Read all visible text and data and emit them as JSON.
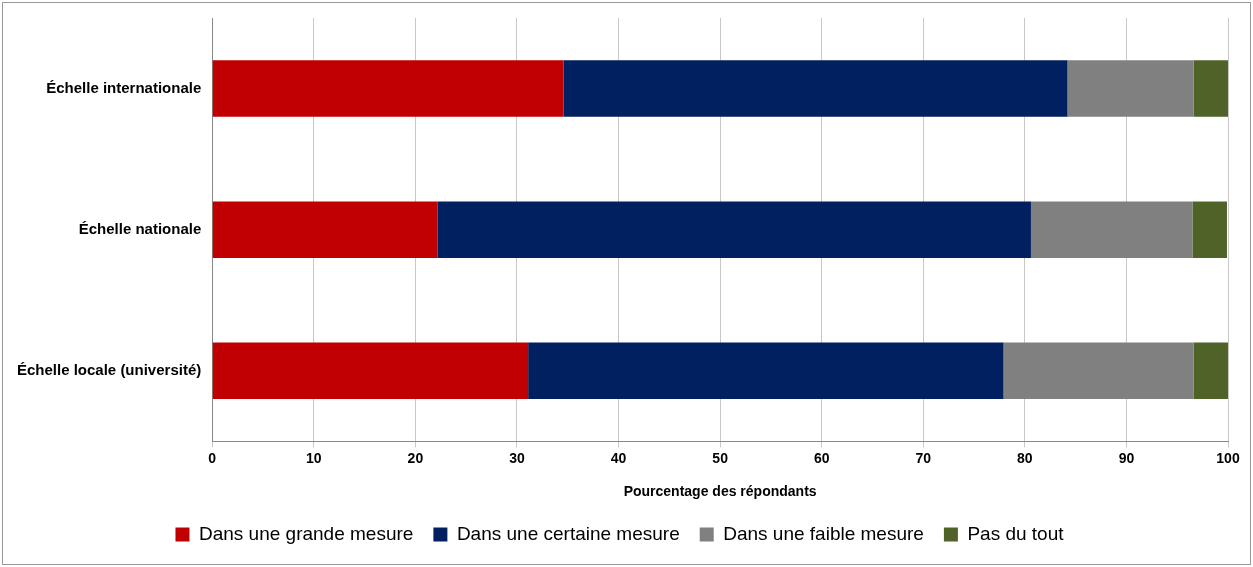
{
  "chart_data": {
    "type": "bar",
    "orientation": "horizontal",
    "stacked": true,
    "categories": [
      "Échelle internationale",
      "Échelle nationale",
      "Échelle locale (université)"
    ],
    "series": [
      {
        "name": "Dans une grande mesure",
        "color": "#c00000",
        "values": [
          34.6,
          22.2,
          31.1
        ]
      },
      {
        "name": "Dans une certaine mesure",
        "color": "#002060",
        "values": [
          49.6,
          58.4,
          46.8
        ]
      },
      {
        "name": "Dans une faible mesure",
        "color": "#808080",
        "values": [
          12.4,
          15.9,
          18.7
        ]
      },
      {
        "name": "Pas du tout",
        "color": "#4f6228",
        "values": [
          3.4,
          3.4,
          3.4
        ]
      }
    ],
    "xlabel": "Pourcentage des répondants",
    "xlim": [
      0,
      100
    ],
    "xticks": [
      0,
      10,
      20,
      30,
      40,
      50,
      60,
      70,
      80,
      90,
      100
    ],
    "grid": "x",
    "legend": "bottom"
  }
}
